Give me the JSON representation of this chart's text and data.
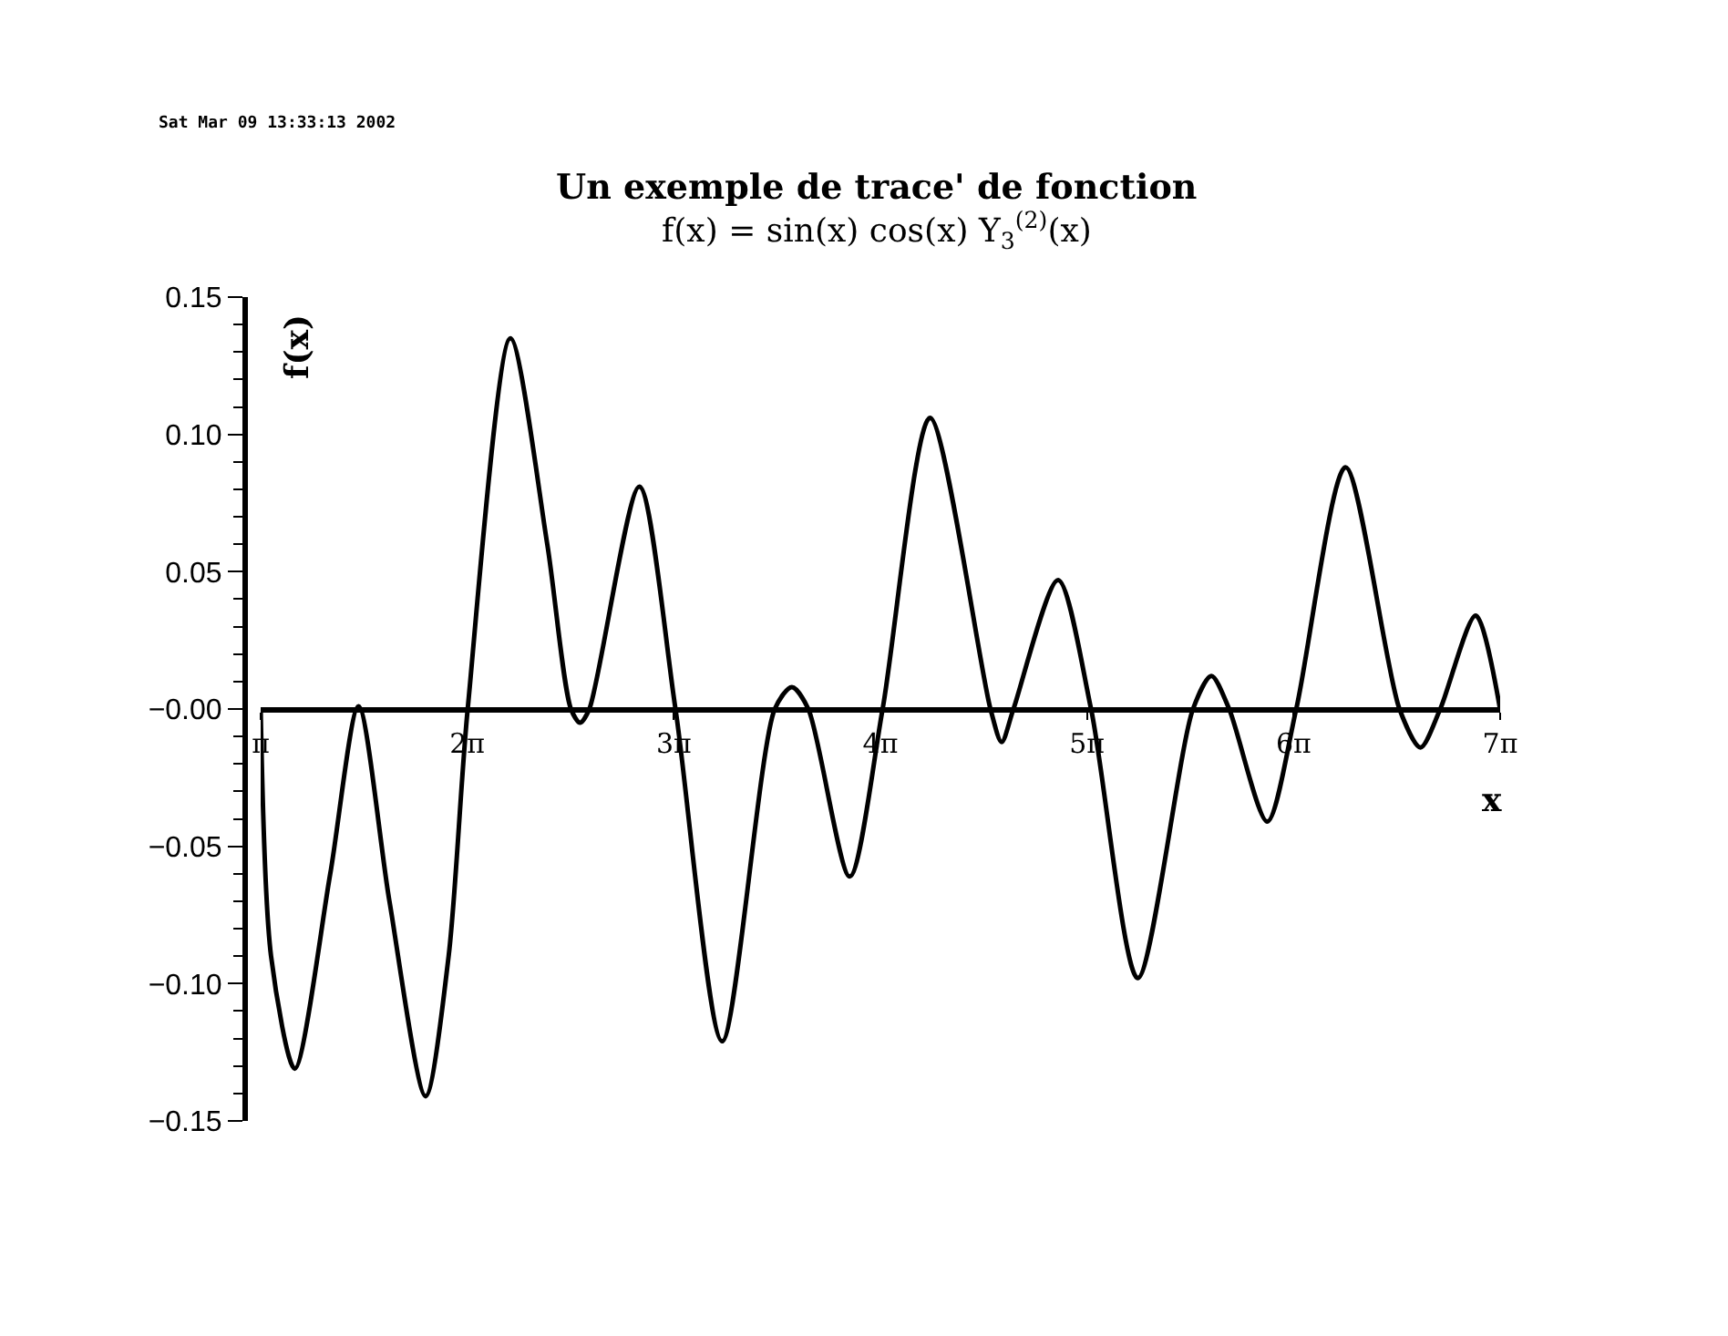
{
  "chart_data": {
    "type": "line",
    "title": "Un exemple de trace' de fonction",
    "subtitle": "f(x) = sin(x) cos(x) Y$_{3}$$^{(2)}$(x)",
    "xlabel": "x",
    "ylabel": "f(x)",
    "annotations": [
      "Sat Mar 09 13:33:13 2002"
    ],
    "series": [
      {
        "color": "#000000",
        "x": [
          3.1416,
          3.3,
          3.66,
          4.2,
          4.63,
          5.1,
          5.65,
          6.0,
          6.29,
          6.94,
          7.5,
          7.86,
          8.0,
          8.14,
          8.9,
          9.45,
          10.16,
          10.96,
          11.22,
          11.47,
          12.1,
          12.6,
          13.32,
          14.24,
          14.41,
          14.59,
          15.27,
          15.77,
          16.48,
          17.32,
          17.6,
          17.87,
          18.45,
          18.89,
          19.64,
          20.46,
          20.78,
          21.08,
          21.62,
          21.99
        ],
        "values": [
          0,
          -0.09,
          -0.131,
          -0.06,
          0.001,
          -0.07,
          -0.141,
          -0.09,
          0,
          0.135,
          0.06,
          0,
          -0.005,
          0,
          0.081,
          0,
          -0.121,
          0,
          0.008,
          0,
          -0.061,
          0,
          0.106,
          0,
          -0.012,
          0,
          0.047,
          0,
          -0.098,
          0,
          0.012,
          0,
          -0.041,
          0,
          0.088,
          0,
          -0.014,
          0,
          0.034,
          0
        ]
      }
    ],
    "xlim": [
      3.1416,
      21.9911
    ],
    "xticks": [
      {
        "value": 3.1416,
        "label": "π"
      },
      {
        "value": 6.2832,
        "label": "2π"
      },
      {
        "value": 9.4248,
        "label": "3π"
      },
      {
        "value": 12.5664,
        "label": "4π"
      },
      {
        "value": 15.708,
        "label": "5π"
      },
      {
        "value": 18.8496,
        "label": "6π"
      },
      {
        "value": 21.9911,
        "label": "7π"
      }
    ],
    "ylim": [
      -0.15,
      0.15
    ],
    "yticks": [
      {
        "value": -0.15,
        "label": "−0.15"
      },
      {
        "value": -0.1,
        "label": "−0.10"
      },
      {
        "value": -0.05,
        "label": "−0.05"
      },
      {
        "value": 0,
        "label": "−0.00"
      },
      {
        "value": 0.05,
        "label": "0.05"
      },
      {
        "value": 0.1,
        "label": "0.10"
      },
      {
        "value": 0.15,
        "label": "0.15"
      }
    ],
    "marker": "none",
    "line_style": "solid"
  }
}
